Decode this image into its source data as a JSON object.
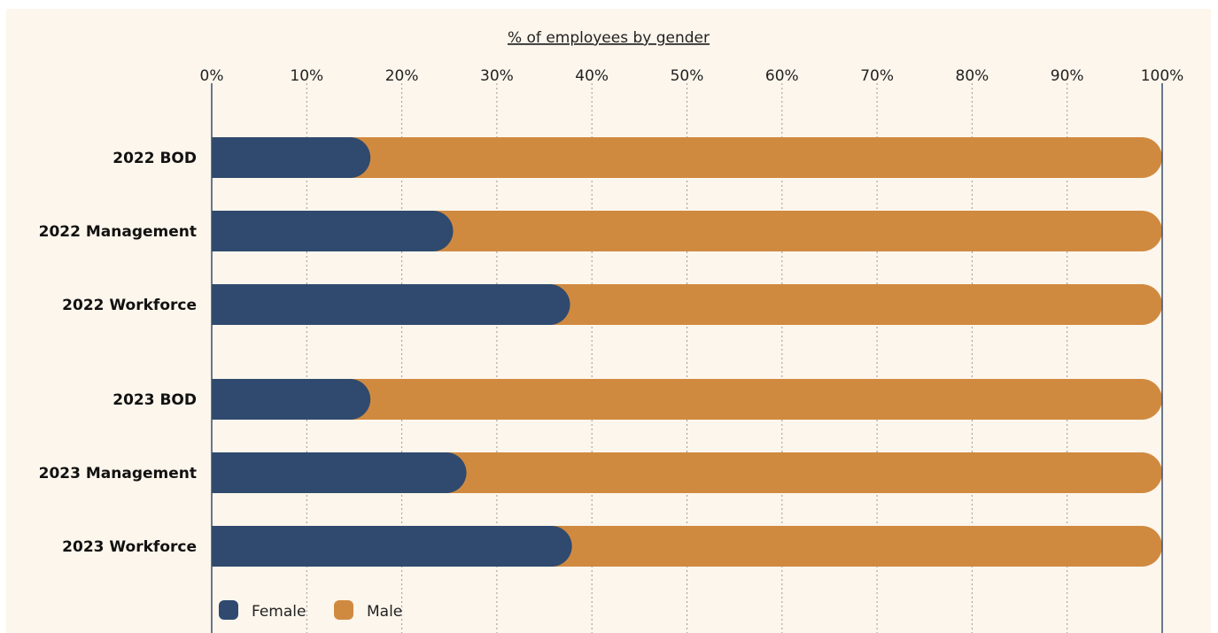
{
  "colors": {
    "background": "#fdf6ec",
    "female": "#2f4a6e",
    "male": "#d08a40",
    "axis": "#3b4d6b",
    "grid": "#9a9a9a"
  },
  "chart_data": {
    "type": "bar",
    "orientation": "horizontal",
    "stacked": true,
    "title": "% of employees by gender",
    "xlim": [
      0,
      100
    ],
    "x_ticks": [
      "0%",
      "10%",
      "20%",
      "30%",
      "40%",
      "50%",
      "60%",
      "70%",
      "80%",
      "90%",
      "100%"
    ],
    "grid": "vertical dashed",
    "legend_position": "bottom-left",
    "categories": [
      "2022 BOD",
      "2022 Management",
      "2022 Workforce",
      "2023 BOD",
      "2023 Management",
      "2023 Workforce"
    ],
    "series": [
      {
        "name": "Female",
        "color": "#2f4a6e",
        "values": [
          16.7,
          25.4,
          37.7,
          16.7,
          26.8,
          37.9
        ]
      },
      {
        "name": "Male",
        "color": "#d08a40",
        "values": [
          83.3,
          74.6,
          62.3,
          83.3,
          73.2,
          62.1
        ]
      }
    ]
  }
}
